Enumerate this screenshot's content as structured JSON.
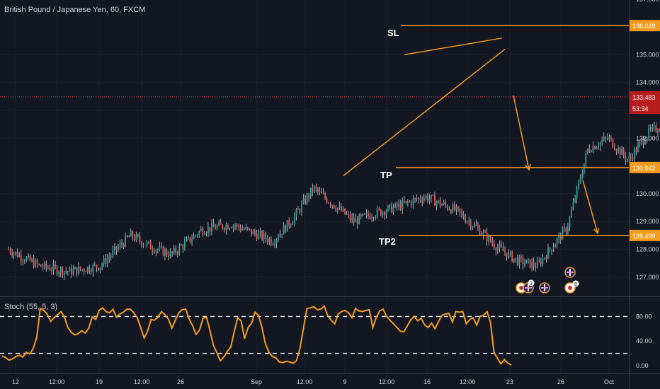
{
  "symbol_title": "British Pound / Japanese Yen, 60, FXCM",
  "stoch_title": "Stoch (55, 5, 3)",
  "colors": {
    "background": "#131722",
    "grid": "#1e222d",
    "orange": "#f39c1f",
    "up": "#26a69a",
    "down": "#ef5350",
    "text": "#d1d4dc",
    "price_tag": "#b71c1c"
  },
  "annotations": {
    "sl": "SL",
    "tp": "TP",
    "tp2": "TP2",
    "event_badges": [
      "3",
      "8"
    ]
  },
  "chart_data": [
    {
      "type": "candlestick",
      "title": "British Pound / Japanese Yen, 60, FXCM",
      "ylim": [
        126.6,
        137.0
      ],
      "price_ticks": [
        "137.000",
        "135.000",
        "134.000",
        "133.000",
        "132.000",
        "130.000",
        "129.000",
        "128.000",
        "127.000"
      ],
      "price_tags": [
        {
          "label": "136.049",
          "value": 136.049
        },
        {
          "label": "133.483",
          "value": 133.483,
          "kind": "current"
        },
        {
          "label": "53:34",
          "kind": "countdown"
        },
        {
          "label": "130.942",
          "value": 130.942
        },
        {
          "label": "128.499",
          "value": 128.499
        }
      ],
      "time_labels": [
        "12",
        "12:00",
        "19",
        "12:00",
        "26",
        "Sep",
        "12:00",
        "9",
        "12:00",
        "16",
        "12:00",
        "23",
        "26",
        "Oct"
      ],
      "close_path": [
        [
          0,
          128.0
        ],
        [
          3,
          127.4
        ],
        [
          6,
          127.2
        ],
        [
          9,
          127.4
        ],
        [
          12,
          128.5
        ],
        [
          14,
          128.1
        ],
        [
          16,
          127.8
        ],
        [
          19,
          128.7
        ],
        [
          22,
          128.9
        ],
        [
          24,
          128.6
        ],
        [
          26,
          128.3
        ],
        [
          28,
          129.1
        ],
        [
          30,
          130.2
        ],
        [
          32,
          129.6
        ],
        [
          34,
          129.0
        ],
        [
          36,
          129.3
        ],
        [
          38,
          129.5
        ],
        [
          41,
          129.9
        ],
        [
          44,
          129.4
        ],
        [
          46,
          128.8
        ],
        [
          48,
          128.1
        ],
        [
          50,
          127.6
        ],
        [
          52,
          127.4
        ],
        [
          55,
          128.8
        ],
        [
          57,
          131.6
        ],
        [
          59,
          132.0
        ],
        [
          61,
          131.2
        ],
        [
          63,
          132.2
        ],
        [
          65,
          132.6
        ],
        [
          67,
          133.0
        ],
        [
          69,
          132.6
        ],
        [
          71,
          133.4
        ],
        [
          73,
          134.9
        ],
        [
          75,
          134.6
        ],
        [
          77,
          134.3
        ],
        [
          79,
          134.9
        ],
        [
          81,
          135.2
        ],
        [
          83,
          134.8
        ],
        [
          85,
          135.4
        ],
        [
          87,
          134.8
        ],
        [
          89,
          134.0
        ],
        [
          90,
          133.483
        ]
      ]
    },
    {
      "type": "line",
      "title": "Stoch (55, 5, 3)",
      "ylim": [
        0,
        100
      ],
      "y_ticks": [
        "80.00",
        "40.00",
        "0.00"
      ],
      "reference_levels": [
        80,
        20
      ],
      "series": [
        {
          "values": [
            16,
            13,
            9,
            11,
            15,
            17,
            14,
            22,
            19,
            28,
            46,
            93,
            90,
            84,
            72,
            78,
            83,
            88,
            79,
            62,
            54,
            50,
            52,
            57,
            53,
            61,
            79,
            75,
            90,
            94,
            88,
            86,
            92,
            79,
            84,
            87,
            92,
            92,
            86,
            78,
            62,
            45,
            56,
            75,
            74,
            79,
            88,
            83,
            76,
            61,
            74,
            86,
            91,
            92,
            76,
            65,
            51,
            58,
            77,
            79,
            57,
            33,
            21,
            8,
            14,
            23,
            30,
            55,
            78,
            73,
            44,
            62,
            69,
            87,
            82,
            63,
            36,
            22,
            15,
            13,
            6,
            5,
            7,
            6,
            4,
            8,
            28,
            61,
            93,
            94,
            96,
            91,
            92,
            97,
            81,
            74,
            68,
            84,
            88,
            90,
            86,
            78,
            93,
            89,
            88,
            90,
            91,
            62,
            78,
            89,
            92,
            80,
            74,
            68,
            62,
            56,
            55,
            65,
            75,
            80,
            73,
            77,
            66,
            62,
            69,
            60,
            72,
            82,
            84,
            85,
            71,
            88,
            87,
            88,
            68,
            75,
            78,
            66,
            80,
            82,
            88,
            70,
            22,
            12,
            3,
            10,
            4,
            1
          ]
        }
      ]
    }
  ]
}
